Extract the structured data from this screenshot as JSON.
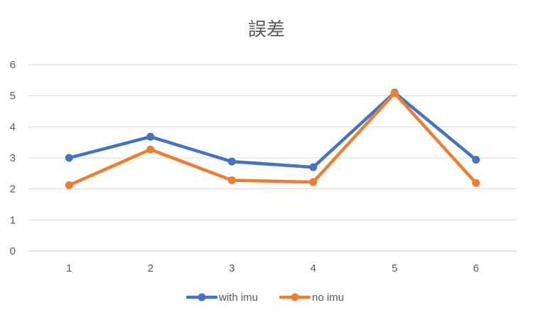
{
  "chart_data": {
    "type": "line",
    "title": "誤差",
    "xlabel": "",
    "ylabel": "",
    "categories": [
      "1",
      "2",
      "3",
      "4",
      "5",
      "6"
    ],
    "ylim": [
      0,
      6
    ],
    "yticks": [
      "0",
      "1",
      "2",
      "3",
      "4",
      "5",
      "6"
    ],
    "grid": true,
    "legend_position": "bottom",
    "series": [
      {
        "name": "with imu",
        "color": "#4472c4",
        "values": [
          3.0,
          3.68,
          2.88,
          2.7,
          5.1,
          2.94
        ]
      },
      {
        "name": "no imu",
        "color": "#ed7d31",
        "values": [
          2.12,
          3.27,
          2.28,
          2.22,
          5.08,
          2.19
        ]
      }
    ]
  }
}
